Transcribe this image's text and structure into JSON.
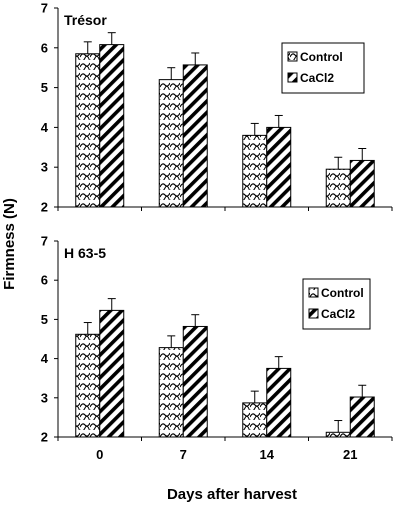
{
  "chart_data": [
    {
      "type": "bar",
      "panel_label": "Trésor",
      "categories": [
        "0",
        "7",
        "14",
        "21"
      ],
      "series": [
        {
          "name": "Control",
          "values": [
            5.85,
            5.2,
            3.8,
            2.95
          ],
          "errors": [
            0.3,
            0.3,
            0.3,
            0.3
          ]
        },
        {
          "name": "CaCl2",
          "values": [
            6.08,
            5.57,
            4.0,
            3.17
          ],
          "errors": [
            0.3,
            0.3,
            0.3,
            0.3
          ]
        }
      ],
      "ylim": [
        2,
        7
      ],
      "yticks": [
        "2",
        "3",
        "4",
        "5",
        "6",
        "7"
      ],
      "legend": "top-right",
      "grid": false
    },
    {
      "type": "bar",
      "panel_label": "H 63-5",
      "categories": [
        "0",
        "7",
        "14",
        "21"
      ],
      "series": [
        {
          "name": "Control",
          "values": [
            4.62,
            4.28,
            2.87,
            2.12
          ],
          "errors": [
            0.3,
            0.3,
            0.3,
            0.3
          ]
        },
        {
          "name": "CaCl2",
          "values": [
            5.23,
            4.82,
            3.75,
            3.02
          ],
          "errors": [
            0.3,
            0.3,
            0.3,
            0.3
          ]
        }
      ],
      "ylim": [
        2,
        7
      ],
      "yticks": [
        "2",
        "3",
        "4",
        "5",
        "6",
        "7"
      ],
      "legend": "top-right",
      "grid": false
    }
  ],
  "ylabel": "Firmness (N)",
  "xlabel": "Days after harvest"
}
